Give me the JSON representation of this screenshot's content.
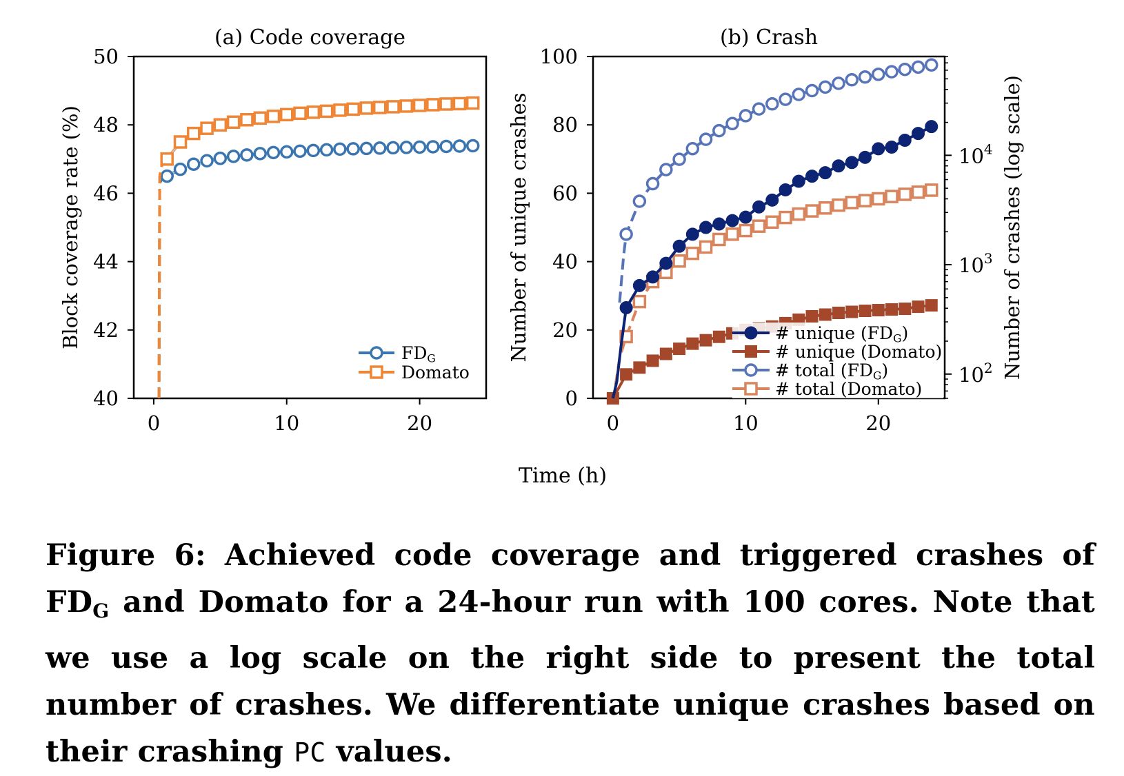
{
  "caption": {
    "p1": "Figure 6: Achieved code coverage and triggered crashes of FD",
    "sub": "G",
    "p2": " and Domato for a 24-hour run with 100 cores. Note that we use a log scale on the right side to present the total number of crashes. We differentiate unique crashes based on their crashing ",
    "mono": "PC",
    "p3": " values."
  },
  "chart_data": [
    {
      "type": "line",
      "title": "(a) Code coverage",
      "xlabel": "Time (h)",
      "ylabel": "Block coverage rate (%)",
      "xlim": [
        -1.5,
        25
      ],
      "ylim": [
        40,
        50
      ],
      "xticks": [
        0,
        10,
        20
      ],
      "yticks": [
        40,
        42,
        44,
        46,
        48,
        50
      ],
      "legend_position": "lower-right",
      "grid": false,
      "series": [
        {
          "name": "FD",
          "name_sub": "G",
          "color": "#3a75b0",
          "marker": "circle-open",
          "start": [
            [
              0.4,
              40
            ],
            [
              0.45,
              46.3
            ],
            [
              0.6,
              46.4
            ]
          ],
          "x": [
            1,
            2,
            3,
            4,
            5,
            6,
            7,
            8,
            9,
            10,
            11,
            12,
            13,
            14,
            15,
            16,
            17,
            18,
            19,
            20,
            21,
            22,
            23,
            24
          ],
          "y": [
            46.5,
            46.7,
            46.85,
            46.95,
            47.02,
            47.08,
            47.12,
            47.16,
            47.19,
            47.21,
            47.23,
            47.25,
            47.27,
            47.29,
            47.3,
            47.31,
            47.32,
            47.33,
            47.34,
            47.35,
            47.36,
            47.37,
            47.38,
            47.39
          ]
        },
        {
          "name": "Domato",
          "color": "#ef8636",
          "marker": "square-open",
          "start": [
            [
              0.4,
              40
            ],
            [
              0.45,
              46.5
            ],
            [
              0.6,
              46.8
            ]
          ],
          "x": [
            1,
            2,
            3,
            4,
            5,
            6,
            7,
            8,
            9,
            10,
            11,
            12,
            13,
            14,
            15,
            16,
            17,
            18,
            19,
            20,
            21,
            22,
            23,
            24
          ],
          "y": [
            47.0,
            47.5,
            47.75,
            47.9,
            48.0,
            48.08,
            48.15,
            48.2,
            48.25,
            48.3,
            48.34,
            48.37,
            48.4,
            48.43,
            48.46,
            48.49,
            48.51,
            48.53,
            48.55,
            48.57,
            48.59,
            48.61,
            48.62,
            48.64
          ]
        }
      ]
    },
    {
      "type": "line",
      "title": "(b) Crash",
      "xlabel": "Time (h)",
      "ylabel": "Number of unique crashes",
      "ylabel_right": "Number of crashes (log scale)",
      "xlim": [
        -1.5,
        25
      ],
      "ylim": [
        0,
        100
      ],
      "ylim_right_log": [
        60,
        80000
      ],
      "xticks": [
        0,
        10,
        20
      ],
      "yticks": [
        0,
        20,
        40,
        60,
        80,
        100
      ],
      "yticks_right": [
        {
          "value": 100,
          "base": "10",
          "exp": "2"
        },
        {
          "value": 1000,
          "base": "10",
          "exp": "3"
        },
        {
          "value": 10000,
          "base": "10",
          "exp": "4"
        }
      ],
      "legend_position": "lower-right",
      "grid": false,
      "series": [
        {
          "name": "# unique (FD",
          "name_sub": "G",
          "name_end": ")",
          "axis": "left",
          "color": "#0d2474",
          "marker": "circle-filled",
          "start": [
            [
              0,
              0
            ],
            [
              0.3,
              5
            ],
            [
              0.6,
              15
            ]
          ],
          "x": [
            1,
            2,
            3,
            4,
            5,
            6,
            7,
            8,
            9,
            10,
            11,
            12,
            13,
            14,
            15,
            16,
            17,
            18,
            19,
            20,
            21,
            22,
            23,
            24
          ],
          "y": [
            26.5,
            33,
            35.5,
            39.5,
            44.5,
            48,
            50,
            51,
            52,
            53,
            56,
            58,
            61,
            63.5,
            65,
            66,
            68,
            69,
            70.5,
            73,
            73.5,
            75.5,
            77.5,
            79.5
          ]
        },
        {
          "name": "# unique (Domato)",
          "axis": "left",
          "color": "#a4472a",
          "marker": "square-filled",
          "x": [
            0,
            1,
            2,
            3,
            4,
            5,
            6,
            7,
            8,
            9,
            10,
            11,
            12,
            13,
            14,
            15,
            16,
            17,
            18,
            19,
            20,
            21,
            22,
            23,
            24
          ],
          "y": [
            0,
            7,
            9,
            11,
            13,
            14.5,
            16,
            17,
            18,
            19,
            20,
            20.5,
            21,
            22,
            23,
            24,
            24.5,
            25,
            25.3,
            25.6,
            25.8,
            26,
            26.2,
            26.8,
            27.2
          ]
        },
        {
          "name": "# total (FD",
          "name_sub": "G",
          "name_end": ")",
          "axis": "right",
          "color": "#5774b8",
          "marker": "circle-open",
          "start": [
            [
              0.5,
              450
            ],
            [
              0.8,
              1200
            ]
          ],
          "x": [
            1,
            2,
            3,
            4,
            5,
            6,
            7,
            8,
            9,
            10,
            11,
            12,
            13,
            14,
            15,
            16,
            17,
            18,
            19,
            20,
            21,
            22,
            23,
            24
          ],
          "y": [
            1900,
            3800,
            5500,
            7400,
            9200,
            11500,
            14000,
            16800,
            19500,
            23000,
            26500,
            29500,
            32500,
            36000,
            39000,
            42000,
            45500,
            49000,
            52000,
            55000,
            58000,
            61000,
            64000,
            67000
          ]
        },
        {
          "name": "# total (Domato)",
          "axis": "right",
          "color": "#d8845c",
          "marker": "square-open",
          "start": [
            [
              0.2,
              80
            ],
            [
              0.5,
              140
            ]
          ],
          "x": [
            1,
            2,
            3,
            4,
            5,
            6,
            7,
            8,
            9,
            10,
            11,
            12,
            13,
            14,
            15,
            16,
            17,
            18,
            19,
            20,
            21,
            22,
            23,
            24
          ],
          "y": [
            220,
            460,
            700,
            850,
            1080,
            1270,
            1450,
            1700,
            1900,
            2050,
            2250,
            2450,
            2700,
            2900,
            3100,
            3300,
            3500,
            3700,
            3850,
            4000,
            4200,
            4400,
            4600,
            4800
          ]
        }
      ]
    }
  ]
}
